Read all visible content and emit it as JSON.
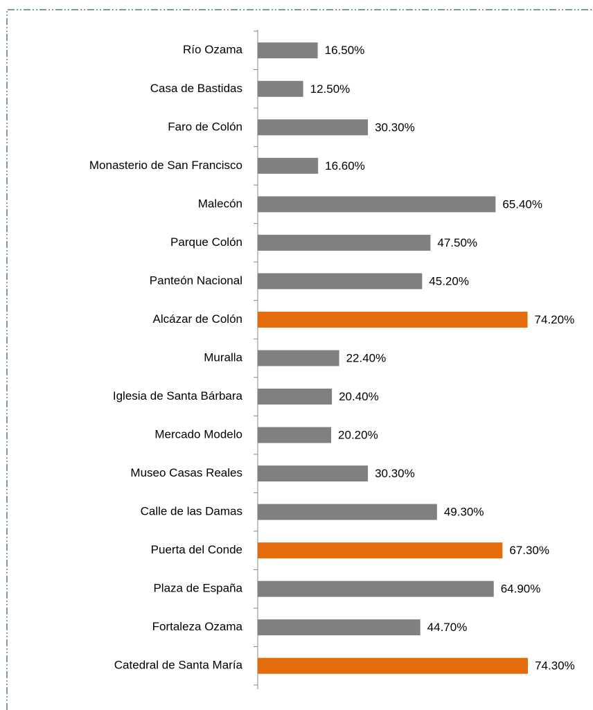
{
  "chart_data": {
    "type": "bar",
    "orientation": "horizontal",
    "categories": [
      "Río Ozama",
      "Casa de Bastidas",
      "Faro de Colón",
      "Monasterio de San Francisco",
      "Malecón",
      "Parque Colón",
      "Panteón Nacional",
      "Alcázar de Colón",
      "Muralla",
      "Iglesia de Santa Bárbara",
      "Mercado Modelo",
      "Museo Casas Reales",
      "Calle de las Damas",
      "Puerta del Conde",
      "Plaza de España",
      "Fortaleza Ozama",
      "Catedral de Santa María"
    ],
    "values": [
      16.5,
      12.5,
      30.3,
      16.6,
      65.4,
      47.5,
      45.2,
      74.2,
      22.4,
      20.4,
      20.2,
      30.3,
      49.3,
      67.3,
      64.9,
      44.7,
      74.3
    ],
    "value_labels": [
      "16.50%",
      "12.50%",
      "30.30%",
      "16.60%",
      "65.40%",
      "47.50%",
      "45.20%",
      "74.20%",
      "22.40%",
      "20.40%",
      "20.20%",
      "30.30%",
      "49.30%",
      "67.30%",
      "64.90%",
      "44.70%",
      "74.30%"
    ],
    "colors": [
      "#808080",
      "#808080",
      "#808080",
      "#808080",
      "#808080",
      "#808080",
      "#808080",
      "#e46c0a",
      "#808080",
      "#808080",
      "#808080",
      "#808080",
      "#808080",
      "#e46c0a",
      "#808080",
      "#808080",
      "#e46c0a"
    ],
    "xlim": [
      0,
      80
    ]
  }
}
